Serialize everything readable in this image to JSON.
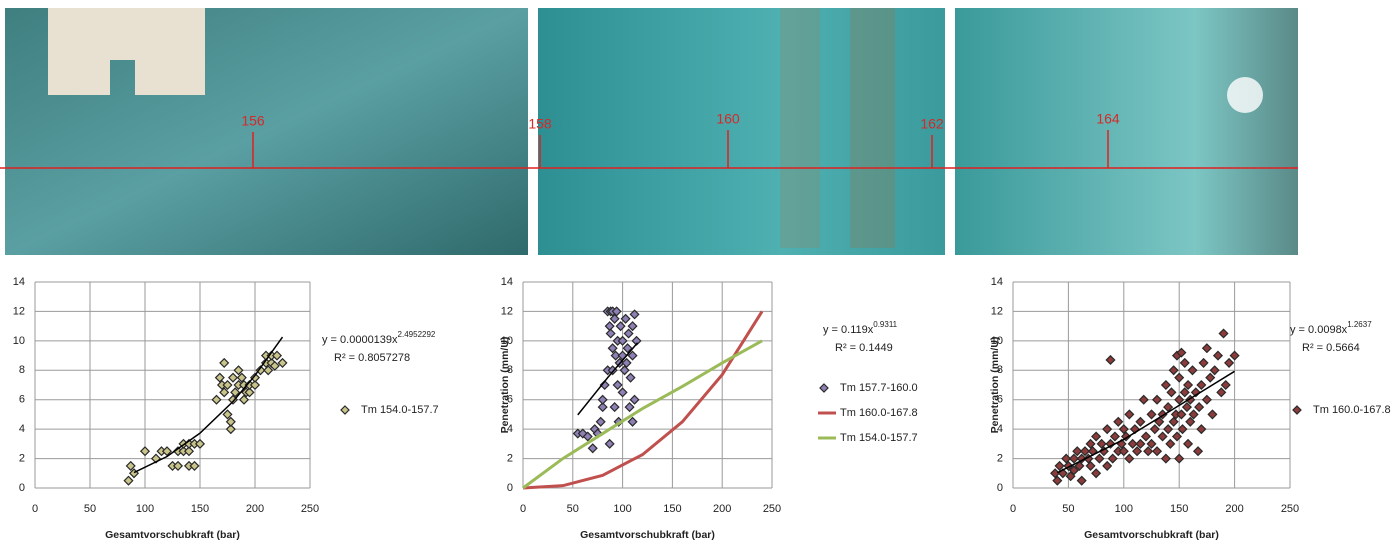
{
  "photos": {
    "station_labels": [
      "156",
      "158",
      "160",
      "162",
      "164"
    ]
  },
  "chart_data": [
    {
      "type": "scatter",
      "xlabel": "Gesamtvorschubkraft (bar)",
      "xlim": [
        0,
        250
      ],
      "ylim": [
        0,
        14
      ],
      "xticks": [
        0,
        50,
        100,
        150,
        200,
        250
      ],
      "yticks": [
        0,
        2,
        4,
        6,
        8,
        10,
        12,
        14
      ],
      "grid": true,
      "legend": "right",
      "equation": {
        "text": "y = 0.0000139x",
        "exponent": "2.4952292",
        "r2": "R² = 0.8057278"
      },
      "trendline": {
        "color": "#000000",
        "x": [
          90,
          120,
          150,
          180,
          200,
          225
        ],
        "values": [
          1.05,
          2.14,
          3.73,
          5.88,
          7.65,
          10.26
        ]
      },
      "series": [
        {
          "name": "Tm 154.0-157.7",
          "color": "#c9c48a",
          "style": "marker",
          "x": [
            85,
            87,
            90,
            100,
            110,
            115,
            120,
            125,
            130,
            130,
            135,
            135,
            140,
            140,
            140,
            145,
            145,
            150,
            165,
            168,
            170,
            172,
            172,
            175,
            175,
            178,
            178,
            180,
            180,
            182,
            185,
            185,
            188,
            190,
            190,
            192,
            195,
            195,
            200,
            200,
            205,
            210,
            210,
            212,
            215,
            215,
            218,
            220,
            225
          ],
          "values": [
            0.5,
            1.5,
            1,
            2.5,
            2,
            2.5,
            2.5,
            1.5,
            1.5,
            2.5,
            2.5,
            3,
            1.5,
            2.5,
            3,
            1.5,
            3,
            3,
            6,
            7.5,
            7,
            6.5,
            8.5,
            7,
            5,
            4,
            4.5,
            6,
            7.5,
            6.5,
            7,
            8,
            7.5,
            6,
            7,
            6.5,
            6.5,
            7,
            7,
            7.5,
            8,
            8.5,
            9,
            8,
            8.5,
            9,
            8.3,
            9,
            8.5
          ]
        }
      ]
    },
    {
      "type": "scatter",
      "xlabel": "Gesamtvorschubkraft (bar)",
      "ylabel": "Penetration (mm/U)",
      "xlim": [
        0,
        250
      ],
      "ylim": [
        0,
        14
      ],
      "xticks": [
        0,
        50,
        100,
        150,
        200,
        250
      ],
      "yticks": [
        0,
        2,
        4,
        6,
        8,
        10,
        12,
        14
      ],
      "grid": true,
      "legend": "right",
      "equation": {
        "text": "y = 0.119x",
        "exponent": "0.9311",
        "r2": "R² = 0.1449"
      },
      "trendline": {
        "color": "#000000",
        "x": [
          55,
          85,
          115
        ],
        "values": [
          4.97,
          7.5,
          9.87
        ]
      },
      "series": [
        {
          "name": "Tm 157.7-160.0",
          "color": "#8e80b5",
          "style": "marker",
          "x": [
            55,
            60,
            65,
            70,
            72,
            75,
            78,
            80,
            80,
            82,
            85,
            85,
            87,
            87,
            88,
            88,
            90,
            90,
            90,
            92,
            92,
            93,
            94,
            95,
            95,
            96,
            97,
            98,
            100,
            100,
            100,
            102,
            103,
            104,
            105,
            106,
            107,
            108,
            110,
            110,
            110,
            112,
            112,
            114
          ],
          "values": [
            3.7,
            3.7,
            3.5,
            2.7,
            4,
            3.7,
            4.5,
            5.5,
            6,
            7,
            8,
            12,
            11,
            3,
            12,
            10.5,
            12,
            9.5,
            8,
            11.5,
            5.5,
            9,
            12,
            10,
            7,
            4.5,
            8.5,
            11,
            10,
            9,
            6.5,
            8,
            11.5,
            8.5,
            9.5,
            10.5,
            5.5,
            7.5,
            11,
            9,
            4.5,
            11.8,
            6,
            10
          ]
        },
        {
          "name": "Tm 160.0-167.8",
          "color": "#c0504d",
          "style": "line",
          "x": [
            0,
            40,
            80,
            120,
            160,
            200,
            240
          ],
          "values": [
            0,
            0.16,
            0.86,
            2.27,
            4.5,
            7.7,
            12
          ]
        },
        {
          "name": "Tm 154.0-157.7",
          "color": "#9bbb59",
          "style": "line",
          "x": [
            0,
            40,
            80,
            120,
            160,
            200,
            240
          ],
          "values": [
            0,
            2,
            3.7,
            5.4,
            6.9,
            8.5,
            10
          ]
        }
      ]
    },
    {
      "type": "scatter",
      "xlabel": "Gesamtvorschubkraft (bar)",
      "ylabel": "Penetration (mm/U)",
      "xlim": [
        0,
        250
      ],
      "ylim": [
        0,
        14
      ],
      "xticks": [
        0,
        50,
        100,
        150,
        200,
        250
      ],
      "yticks": [
        0,
        2,
        4,
        6,
        8,
        10,
        12,
        14
      ],
      "grid": true,
      "legend": "right",
      "equation": {
        "text": "y = 0.0098x",
        "exponent": "1.2637",
        "r2": "R² = 0.5664"
      },
      "trendline": {
        "color": "#000000",
        "x": [
          40,
          100,
          200
        ],
        "values": [
          1.04,
          3.3,
          7.93
        ]
      },
      "series": [
        {
          "name": "Tm 160.0-167.8",
          "color": "#8c3b3b",
          "style": "marker",
          "x": [
            38,
            40,
            42,
            45,
            48,
            50,
            52,
            55,
            55,
            58,
            60,
            62,
            62,
            65,
            68,
            70,
            70,
            72,
            75,
            75,
            78,
            80,
            82,
            85,
            85,
            88,
            88,
            90,
            92,
            95,
            95,
            98,
            100,
            100,
            102,
            105,
            105,
            108,
            110,
            112,
            115,
            115,
            118,
            120,
            122,
            125,
            125,
            128,
            130,
            130,
            132,
            135,
            135,
            138,
            138,
            140,
            140,
            142,
            143,
            145,
            145,
            147,
            148,
            148,
            150,
            150,
            150,
            152,
            152,
            153,
            155,
            155,
            157,
            158,
            158,
            160,
            160,
            162,
            163,
            165,
            167,
            168,
            170,
            170,
            172,
            175,
            175,
            178,
            180,
            182,
            185,
            188,
            190,
            192,
            195,
            200
          ],
          "values": [
            1,
            0.5,
            1.5,
            1,
            2,
            1.5,
            0.8,
            2,
            1.2,
            2.5,
            1.5,
            2,
            0.5,
            2.5,
            2,
            3,
            1.5,
            2.5,
            3.5,
            1,
            2,
            3,
            2.5,
            4,
            1.5,
            3,
            8.7,
            2,
            3.5,
            2.5,
            4.5,
            3,
            2.5,
            4,
            3.5,
            5,
            2,
            3,
            4,
            2.5,
            4.5,
            3,
            6,
            3.5,
            2.5,
            5,
            3,
            4,
            6,
            2.5,
            4.5,
            5,
            3.5,
            7,
            2,
            4,
            5.5,
            3,
            6.5,
            4.5,
            8,
            5,
            9,
            3.5,
            6,
            2,
            7.5,
            5,
            9.2,
            4,
            6.5,
            8.5,
            5.5,
            3,
            7,
            6,
            4.5,
            8,
            5,
            6.5,
            2.5,
            5.5,
            7,
            4,
            8.5,
            6,
            9.5,
            7.5,
            5,
            8,
            9,
            6.5,
            10.5,
            7,
            8.5,
            9
          ]
        }
      ]
    }
  ]
}
